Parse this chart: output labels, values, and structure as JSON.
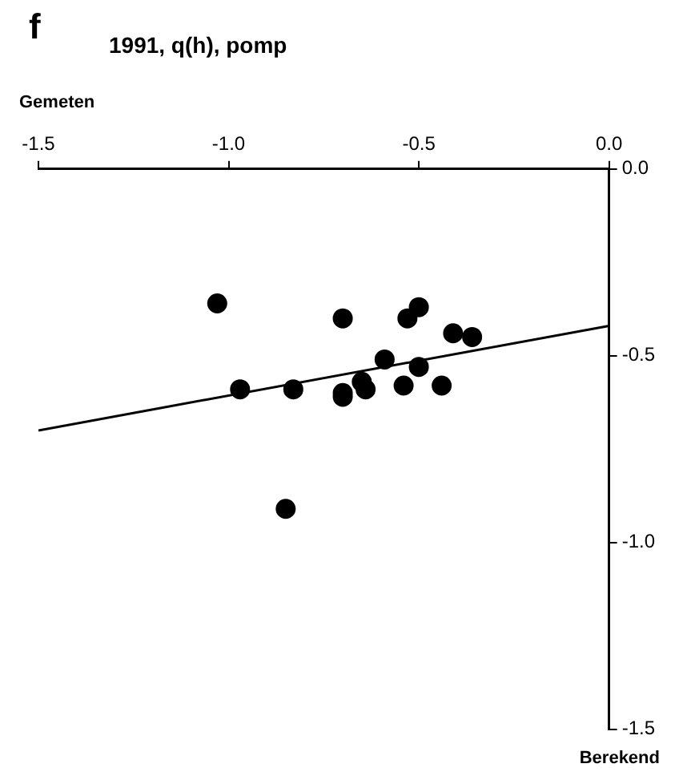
{
  "chart_data": {
    "type": "scatter",
    "title": "1991, q(h), pomp",
    "xlabel": "Gemeten",
    "ylabel": "Berekend",
    "annotations": [
      "f"
    ],
    "xlim": [
      -1.5,
      0
    ],
    "xticks": [
      -1.5,
      {
        "value": -1,
        "label": "-1.0"
      },
      {
        "value": -0.5,
        "label": "-0.5"
      },
      {
        "value": 0,
        "label": "0.0"
      }
    ],
    "ylim": [
      -1.5,
      0
    ],
    "yticks": [
      -1.5,
      {
        "value": -1,
        "label": "-1.0"
      },
      {
        "value": -0.5,
        "label": "-0.5"
      },
      {
        "value": 0,
        "label": "0.0"
      }
    ],
    "grid": false,
    "legend": false,
    "marker": "circle",
    "series": [
      {
        "color": "#000000",
        "x": [
          -1.03,
          -0.7,
          -0.53,
          -0.5,
          -0.41,
          -0.36,
          -0.59,
          -0.5,
          -0.97,
          -0.83,
          -0.7,
          -0.7,
          -0.65,
          -0.64,
          -0.54,
          -0.44,
          -0.85
        ],
        "values": [
          -0.36,
          -0.4,
          -0.4,
          -0.37,
          -0.44,
          -0.45,
          -0.51,
          -0.53,
          -0.59,
          -0.59,
          -0.6,
          -0.61,
          -0.57,
          -0.59,
          -0.58,
          -0.58,
          -0.91
        ]
      },
      {
        "type": "line",
        "color": "#000000",
        "x": [
          -1.5,
          0
        ],
        "values": [
          -0.7,
          -0.42
        ],
        "marker": "none",
        "line_style": "solid"
      }
    ]
  }
}
